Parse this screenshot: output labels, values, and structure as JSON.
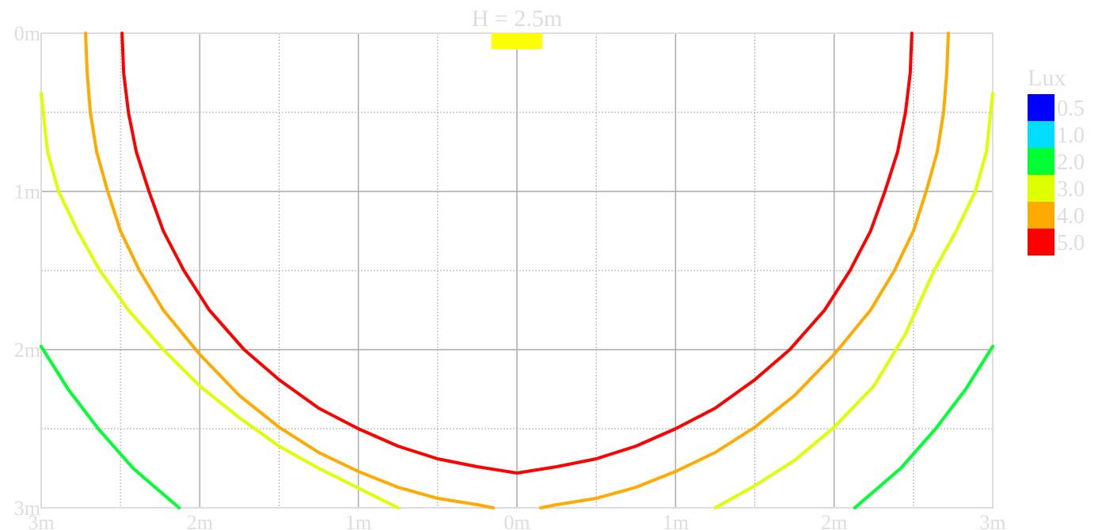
{
  "chart_data": {
    "type": "line",
    "title": "H = 2.5m",
    "xlim": [
      -3,
      3
    ],
    "ylim": [
      0,
      3
    ],
    "y_inverted": true,
    "grid": true,
    "x_ticks": [
      {
        "value": -3,
        "label": "3m"
      },
      {
        "value": -2,
        "label": "2m"
      },
      {
        "value": -1,
        "label": "1m"
      },
      {
        "value": 0,
        "label": "0m"
      },
      {
        "value": 1,
        "label": "1m"
      },
      {
        "value": 2,
        "label": "2m"
      },
      {
        "value": 3,
        "label": "3m"
      }
    ],
    "y_ticks": [
      {
        "value": 0,
        "label": "0m"
      },
      {
        "value": 1,
        "label": "1m"
      },
      {
        "value": 2,
        "label": "2m"
      },
      {
        "value": 3,
        "label": "3m"
      }
    ],
    "minor_grid_step": 0.5,
    "luminaire": {
      "x_center": 0,
      "width": 0.32,
      "y_top": 0,
      "y_bottom": 0.1,
      "color": "#ffff00"
    },
    "legend": {
      "title": "Lux",
      "placement": "right",
      "entries": [
        {
          "label": "0.5",
          "color": "#0000ff"
        },
        {
          "label": "1.0",
          "color": "#00ddff"
        },
        {
          "label": "2.0",
          "color": "#00ff33"
        },
        {
          "label": "3.0",
          "color": "#ddff00"
        },
        {
          "label": "4.0",
          "color": "#ffaa00"
        },
        {
          "label": "5.0",
          "color": "#ff0000"
        }
      ]
    },
    "series": [
      {
        "name": "2.0",
        "color": "#00ff33",
        "segments": [
          [
            [
              -3.0,
              1.98
            ],
            [
              -2.83,
              2.25
            ],
            [
              -2.64,
              2.5
            ],
            [
              -2.42,
              2.75
            ],
            [
              -2.13,
              3.0
            ]
          ],
          [
            [
              2.13,
              3.0
            ],
            [
              2.42,
              2.75
            ],
            [
              2.64,
              2.5
            ],
            [
              2.83,
              2.25
            ],
            [
              3.0,
              1.98
            ]
          ]
        ]
      },
      {
        "name": "3.0",
        "color": "#ddff00",
        "segments": [
          [
            [
              -3.0,
              0.38
            ],
            [
              -2.96,
              0.75
            ],
            [
              -2.89,
              1.0
            ],
            [
              -2.77,
              1.25
            ],
            [
              -2.63,
              1.5
            ],
            [
              -2.45,
              1.75
            ],
            [
              -2.23,
              2.0
            ],
            [
              -2.0,
              2.23
            ],
            [
              -1.75,
              2.43
            ],
            [
              -1.5,
              2.61
            ],
            [
              -1.25,
              2.75
            ],
            [
              -0.75,
              3.0
            ]
          ],
          [
            [
              1.25,
              3.0
            ],
            [
              1.5,
              2.86
            ],
            [
              1.75,
              2.7
            ],
            [
              2.0,
              2.49
            ],
            [
              2.25,
              2.23
            ],
            [
              2.45,
              1.9
            ],
            [
              2.63,
              1.5
            ],
            [
              2.77,
              1.25
            ],
            [
              2.89,
              1.0
            ],
            [
              2.96,
              0.75
            ],
            [
              3.0,
              0.38
            ]
          ]
        ]
      },
      {
        "name": "4.0",
        "color": "#ffaa00",
        "segments": [
          [
            [
              -2.72,
              0.0
            ],
            [
              -2.71,
              0.25
            ],
            [
              -2.69,
              0.5
            ],
            [
              -2.65,
              0.75
            ],
            [
              -2.58,
              1.0
            ],
            [
              -2.5,
              1.25
            ],
            [
              -2.38,
              1.5
            ],
            [
              -2.23,
              1.75
            ],
            [
              -2.0,
              2.03
            ],
            [
              -1.75,
              2.29
            ],
            [
              -1.5,
              2.49
            ],
            [
              -1.25,
              2.65
            ],
            [
              -1.0,
              2.77
            ],
            [
              -0.75,
              2.87
            ],
            [
              -0.5,
              2.94
            ],
            [
              -0.25,
              2.98
            ],
            [
              -0.15,
              3.0
            ]
          ],
          [
            [
              0.15,
              3.0
            ],
            [
              0.25,
              2.98
            ],
            [
              0.5,
              2.94
            ],
            [
              0.75,
              2.87
            ],
            [
              1.0,
              2.77
            ],
            [
              1.25,
              2.65
            ],
            [
              1.5,
              2.49
            ],
            [
              1.75,
              2.29
            ],
            [
              2.0,
              2.03
            ],
            [
              2.23,
              1.75
            ],
            [
              2.38,
              1.5
            ],
            [
              2.5,
              1.25
            ],
            [
              2.58,
              1.0
            ],
            [
              2.65,
              0.75
            ],
            [
              2.69,
              0.5
            ],
            [
              2.71,
              0.25
            ],
            [
              2.72,
              0.0
            ]
          ]
        ]
      },
      {
        "name": "5.0",
        "color": "#ff0000",
        "segments": [
          [
            [
              -2.49,
              0.0
            ],
            [
              -2.48,
              0.25
            ],
            [
              -2.45,
              0.5
            ],
            [
              -2.4,
              0.75
            ],
            [
              -2.32,
              1.0
            ],
            [
              -2.23,
              1.25
            ],
            [
              -2.1,
              1.5
            ],
            [
              -1.94,
              1.75
            ],
            [
              -1.72,
              2.0
            ],
            [
              -1.5,
              2.19
            ],
            [
              -1.25,
              2.37
            ],
            [
              -1.0,
              2.5
            ],
            [
              -0.75,
              2.61
            ],
            [
              -0.5,
              2.69
            ],
            [
              -0.25,
              2.74
            ],
            [
              0.0,
              2.78
            ],
            [
              0.25,
              2.74
            ],
            [
              0.5,
              2.69
            ],
            [
              0.75,
              2.61
            ],
            [
              1.0,
              2.5
            ],
            [
              1.25,
              2.37
            ],
            [
              1.5,
              2.19
            ],
            [
              1.72,
              2.0
            ],
            [
              1.94,
              1.75
            ],
            [
              2.1,
              1.5
            ],
            [
              2.23,
              1.25
            ],
            [
              2.32,
              1.0
            ],
            [
              2.4,
              0.75
            ],
            [
              2.45,
              0.5
            ],
            [
              2.48,
              0.25
            ],
            [
              2.49,
              0.0
            ]
          ]
        ]
      }
    ]
  }
}
